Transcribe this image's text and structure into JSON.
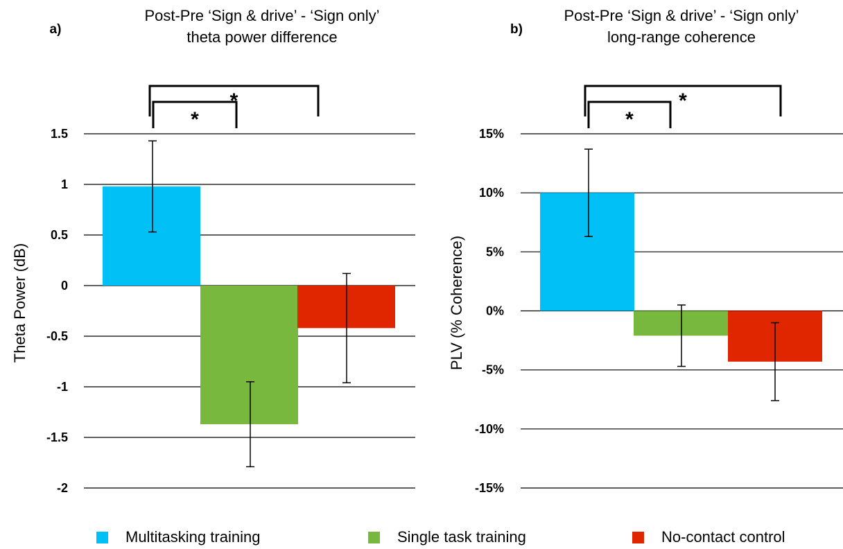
{
  "chart_data": [
    {
      "type": "bar",
      "panel_label": "a)",
      "title_lines": [
        "Post-Pre ‘Sign & drive’ - ‘Sign only’",
        "theta power difference"
      ],
      "ylabel": "Theta Power (dB)",
      "ylim": [
        -2,
        1.5
      ],
      "yticks": [
        1.5,
        1,
        0.5,
        0,
        -0.5,
        -1,
        -1.5,
        -2
      ],
      "ytick_labels": [
        "1.5",
        "1",
        "0.5",
        "0",
        "-0.5",
        "-1",
        "-1.5",
        "-2"
      ],
      "grid": true,
      "categories": [
        "Multitasking training",
        "Single task training",
        "No-contact control"
      ],
      "values": [
        0.98,
        -1.37,
        -0.42
      ],
      "errors": [
        0.45,
        0.42,
        0.54
      ],
      "significance": [
        {
          "from": 0,
          "to": 1,
          "label": "*"
        },
        {
          "from": 0,
          "to": 2,
          "label": "*"
        }
      ]
    },
    {
      "type": "bar",
      "panel_label": "b)",
      "title_lines": [
        "Post-Pre ‘Sign & drive’ - ‘Sign only’",
        "long-range coherence"
      ],
      "ylabel": "PLV (% Coherence)",
      "ylim": [
        -15,
        15
      ],
      "yticks": [
        15,
        10,
        5,
        0,
        -5,
        -10,
        -15
      ],
      "ytick_labels": [
        "15%",
        "10%",
        "5%",
        "0%",
        "-5%",
        "-10%",
        "-15%"
      ],
      "grid": true,
      "categories": [
        "Multitasking training",
        "Single task training",
        "No-contact control"
      ],
      "values": [
        10.0,
        -2.1,
        -4.3
      ],
      "errors": [
        3.7,
        2.6,
        3.3
      ],
      "significance": [
        {
          "from": 0,
          "to": 1,
          "label": "*"
        },
        {
          "from": 0,
          "to": 2,
          "label": "*"
        }
      ]
    }
  ],
  "legend": {
    "items": [
      {
        "label": "Multitasking training",
        "color": "#00c0f5"
      },
      {
        "label": "Single task training",
        "color": "#79b83e"
      },
      {
        "label": "No-contact control",
        "color": "#e02600"
      }
    ]
  }
}
